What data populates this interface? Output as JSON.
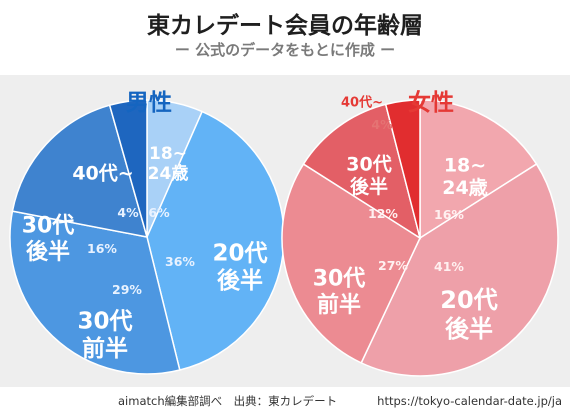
{
  "header": {
    "title": "東カレデート会員の年齢層",
    "subtitle": "ー 公式のデータをもとに作成 ー"
  },
  "footer": {
    "credit": "aimatch編集部調べ　出典：東カレデート",
    "url": "https://tokyo-calendar-date.jp/ja"
  },
  "colors": {
    "male_title": "#1565c0",
    "female_title": "#e53935"
  },
  "chart_data": [
    {
      "type": "pie",
      "title": "男性",
      "slices": [
        {
          "label": "18~\n24歳",
          "value": 6,
          "pct_text": "6%",
          "color": "#a9d1f7"
        },
        {
          "label": "20代\n後半",
          "value": 36,
          "pct_text": "36%",
          "color": "#62b3f6"
        },
        {
          "label": "30代\n前半",
          "value": 29,
          "pct_text": "29%",
          "color": "#4d97e1"
        },
        {
          "label": "30代\n後半",
          "value": 16,
          "pct_text": "16%",
          "color": "#3f83cf"
        },
        {
          "label": "40代~",
          "value": 4,
          "pct_text": "4%",
          "color": "#1e66bf"
        }
      ]
    },
    {
      "type": "pie",
      "title": "女性",
      "slices": [
        {
          "label": "18~\n24歳",
          "value": 16,
          "pct_text": "16%",
          "color": "#f2a7ae"
        },
        {
          "label": "20代\n後半",
          "value": 41,
          "pct_text": "41%",
          "color": "#eea0a9"
        },
        {
          "label": "30代\n前半",
          "value": 27,
          "pct_text": "27%",
          "color": "#ec8b92"
        },
        {
          "label": "30代\n後半",
          "value": 12,
          "pct_text": "12%",
          "color": "#e35f66"
        },
        {
          "label": "40代~",
          "value": 4,
          "pct_text": "4%",
          "color": "#e12d2f"
        }
      ]
    }
  ]
}
